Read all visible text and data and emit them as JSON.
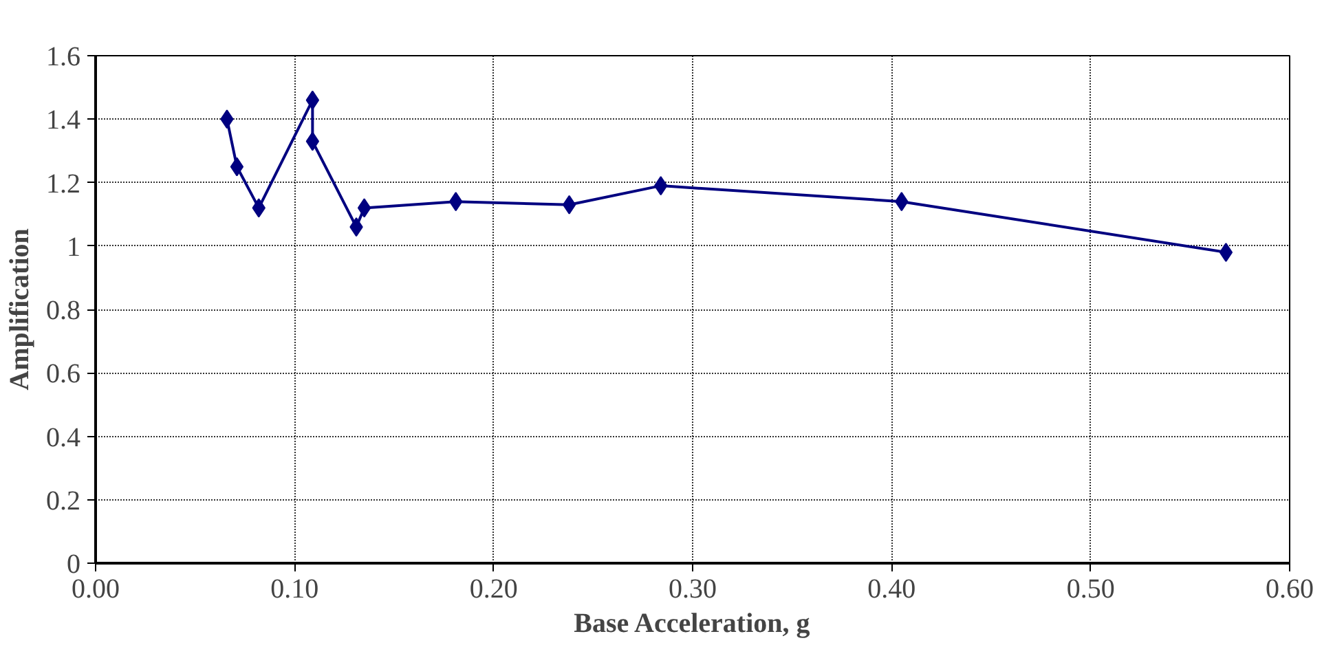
{
  "chart_data": {
    "type": "line",
    "xlabel": "Base Acceleration, g",
    "ylabel": "Amplification",
    "x": [
      0.066,
      0.071,
      0.082,
      0.109,
      0.109,
      0.131,
      0.135,
      0.181,
      0.238,
      0.284,
      0.405,
      0.568
    ],
    "series": [
      {
        "color": "#000080",
        "values": [
          1.4,
          1.25,
          1.12,
          1.46,
          1.33,
          1.06,
          1.12,
          1.14,
          1.13,
          1.19,
          1.14,
          0.98
        ]
      }
    ],
    "xlim": [
      0,
      0.6
    ],
    "xticks": [
      {
        "value": 0,
        "label": "0.00"
      },
      {
        "value": 0.1,
        "label": "0.10"
      },
      {
        "value": 0.2,
        "label": "0.20"
      },
      {
        "value": 0.3,
        "label": "0.30"
      },
      {
        "value": 0.4,
        "label": "0.40"
      },
      {
        "value": 0.5,
        "label": "0.50"
      },
      {
        "value": 0.6,
        "label": "0.60"
      }
    ],
    "ylim": [
      0,
      1.6
    ],
    "yticks": [
      0,
      0.2,
      0.4,
      0.6,
      0.8,
      1,
      1.2,
      1.4,
      1.6
    ],
    "grid": true,
    "marker": "diamond",
    "line_style": "solid"
  }
}
